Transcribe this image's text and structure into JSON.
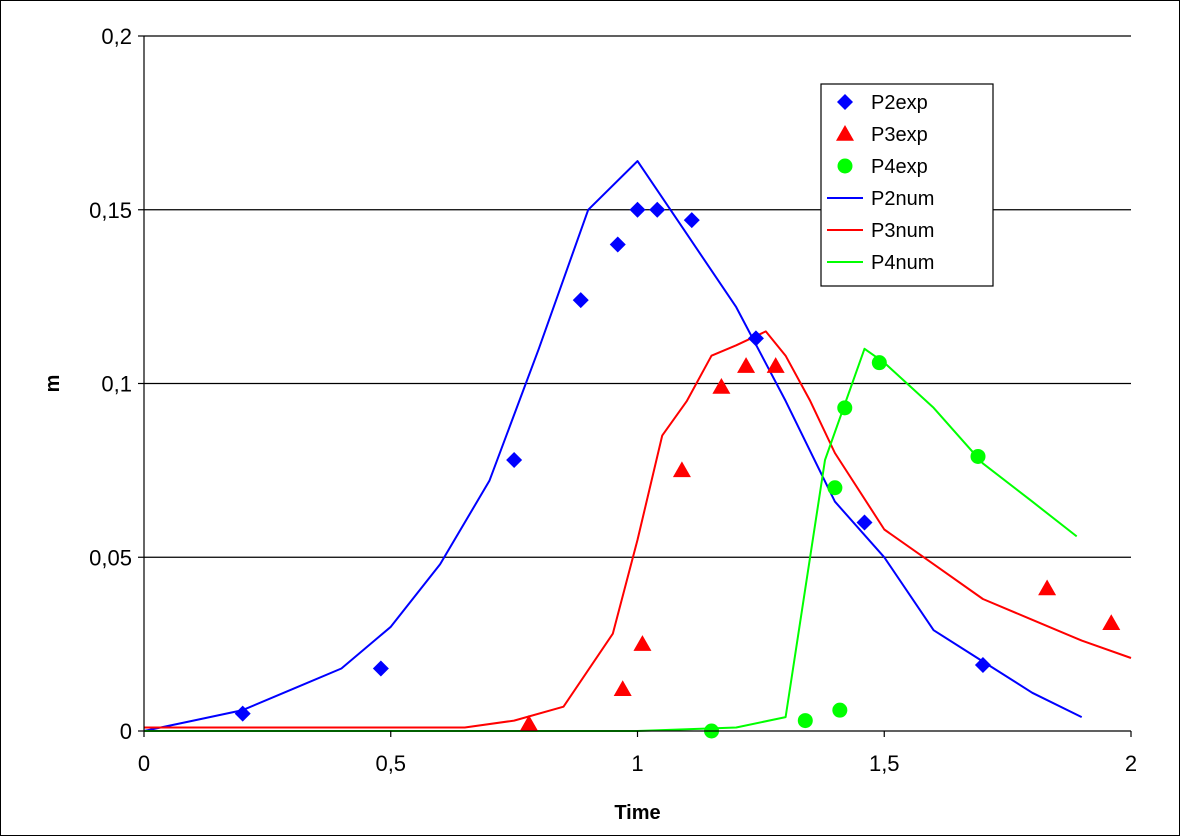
{
  "chart_data": {
    "type": "scatter",
    "title": "",
    "xlabel": "Time",
    "ylabel": "m",
    "xlim": [
      0,
      2
    ],
    "ylim": [
      0,
      0.2
    ],
    "x_ticks": [
      "0",
      "0,5",
      "1",
      "1,5",
      "2"
    ],
    "x_tick_values": [
      0,
      0.5,
      1,
      1.5,
      2
    ],
    "y_ticks": [
      "0",
      "0,05",
      "0,1",
      "0,15",
      "0,2"
    ],
    "y_tick_values": [
      0,
      0.05,
      0.1,
      0.15,
      0.2
    ],
    "grid": "horizontal",
    "legend_position": "top-right",
    "series": [
      {
        "name": "P2exp",
        "kind": "marker",
        "marker": "diamond",
        "color": "#0000ff",
        "points": [
          [
            0.2,
            0.005
          ],
          [
            0.48,
            0.018
          ],
          [
            0.75,
            0.078
          ],
          [
            0.885,
            0.124
          ],
          [
            0.96,
            0.14
          ],
          [
            1.0,
            0.15
          ],
          [
            1.04,
            0.15
          ],
          [
            1.11,
            0.147
          ],
          [
            1.24,
            0.113
          ],
          [
            1.46,
            0.06
          ],
          [
            1.7,
            0.019
          ]
        ]
      },
      {
        "name": "P3exp",
        "kind": "marker",
        "marker": "triangle",
        "color": "#ff0000",
        "points": [
          [
            0.78,
            0.002
          ],
          [
            0.97,
            0.012
          ],
          [
            1.01,
            0.025
          ],
          [
            1.09,
            0.075
          ],
          [
            1.17,
            0.099
          ],
          [
            1.22,
            0.105
          ],
          [
            1.28,
            0.105
          ],
          [
            1.83,
            0.041
          ],
          [
            1.96,
            0.031
          ]
        ]
      },
      {
        "name": "P4exp",
        "kind": "marker",
        "marker": "circle",
        "color": "#00ff00",
        "points": [
          [
            1.15,
            0.0
          ],
          [
            1.34,
            0.003
          ],
          [
            1.4,
            0.07
          ],
          [
            1.41,
            0.006
          ],
          [
            1.42,
            0.093
          ],
          [
            1.49,
            0.106
          ],
          [
            1.69,
            0.079
          ]
        ]
      },
      {
        "name": "P2num",
        "kind": "line",
        "color": "#0000ff",
        "points": [
          [
            0,
            0.0
          ],
          [
            0.1,
            0.003
          ],
          [
            0.2,
            0.006
          ],
          [
            0.3,
            0.012
          ],
          [
            0.4,
            0.018
          ],
          [
            0.5,
            0.03
          ],
          [
            0.6,
            0.048
          ],
          [
            0.7,
            0.072
          ],
          [
            0.8,
            0.11
          ],
          [
            0.9,
            0.15
          ],
          [
            1.0,
            0.164
          ],
          [
            1.1,
            0.143
          ],
          [
            1.2,
            0.122
          ],
          [
            1.3,
            0.095
          ],
          [
            1.4,
            0.066
          ],
          [
            1.5,
            0.05
          ],
          [
            1.6,
            0.029
          ],
          [
            1.7,
            0.02
          ],
          [
            1.8,
            0.011
          ],
          [
            1.9,
            0.004
          ]
        ]
      },
      {
        "name": "P3num",
        "kind": "line",
        "color": "#ff0000",
        "points": [
          [
            0,
            0.001
          ],
          [
            0.2,
            0.001
          ],
          [
            0.4,
            0.001
          ],
          [
            0.65,
            0.001
          ],
          [
            0.75,
            0.003
          ],
          [
            0.85,
            0.007
          ],
          [
            0.95,
            0.028
          ],
          [
            1.0,
            0.055
          ],
          [
            1.05,
            0.085
          ],
          [
            1.1,
            0.095
          ],
          [
            1.15,
            0.108
          ],
          [
            1.2,
            0.111
          ],
          [
            1.26,
            0.115
          ],
          [
            1.3,
            0.108
          ],
          [
            1.35,
            0.095
          ],
          [
            1.4,
            0.08
          ],
          [
            1.5,
            0.058
          ],
          [
            1.6,
            0.048
          ],
          [
            1.7,
            0.038
          ],
          [
            1.8,
            0.032
          ],
          [
            1.9,
            0.026
          ],
          [
            2.0,
            0.021
          ]
        ]
      },
      {
        "name": "P4num",
        "kind": "line",
        "color": "#00ff00",
        "points": [
          [
            0,
            0.0
          ],
          [
            0.5,
            0.0
          ],
          [
            1.0,
            0.0
          ],
          [
            1.2,
            0.001
          ],
          [
            1.3,
            0.004
          ],
          [
            1.38,
            0.078
          ],
          [
            1.46,
            0.11
          ],
          [
            1.5,
            0.106
          ],
          [
            1.6,
            0.093
          ],
          [
            1.7,
            0.077
          ],
          [
            1.8,
            0.066
          ],
          [
            1.89,
            0.056
          ]
        ]
      }
    ]
  }
}
